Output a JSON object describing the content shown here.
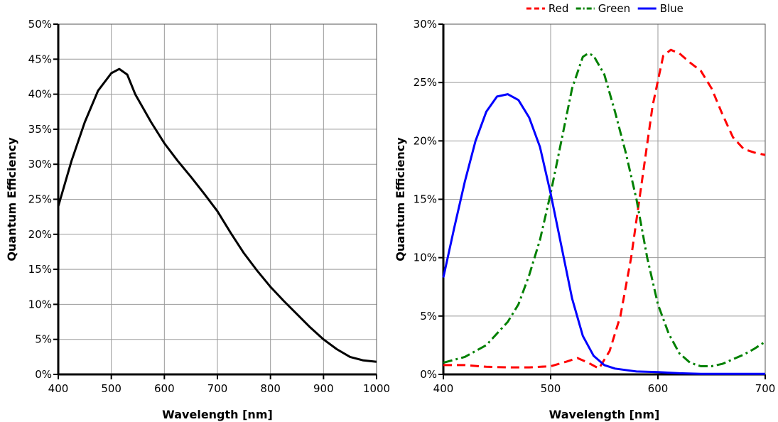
{
  "chart_data": [
    {
      "type": "line",
      "xlabel": "Wavelength [nm]",
      "ylabel": "Quantum Efficiency",
      "xlim": [
        400,
        1000
      ],
      "ylim": [
        0,
        50
      ],
      "x_ticks": [
        "400",
        "500",
        "600",
        "700",
        "800",
        "900",
        "1000"
      ],
      "y_ticks": [
        "0%",
        "5%",
        "10%",
        "15%",
        "20%",
        "25%",
        "30%",
        "35%",
        "40%",
        "45%",
        "50%"
      ],
      "grid": true,
      "legend": "none",
      "series": [
        {
          "color": "#000000",
          "style": "solid",
          "x": [
            400,
            425,
            450,
            475,
            500,
            515,
            530,
            545,
            575,
            600,
            625,
            650,
            675,
            700,
            725,
            750,
            775,
            800,
            825,
            850,
            875,
            900,
            925,
            950,
            975,
            1000
          ],
          "y": [
            24,
            30.5,
            36,
            40.5,
            43,
            43.6,
            42.8,
            40,
            36,
            33,
            30.5,
            28.2,
            25.8,
            23.3,
            20.2,
            17.3,
            14.8,
            12.5,
            10.5,
            8.6,
            6.7,
            5.0,
            3.6,
            2.5,
            2.0,
            1.8
          ]
        }
      ]
    },
    {
      "type": "line",
      "xlabel": "Wavelength [nm]",
      "ylabel": "Quantum Efficiency",
      "xlim": [
        400,
        700
      ],
      "ylim": [
        0,
        30
      ],
      "x_ticks": [
        "400",
        "500",
        "600",
        "700"
      ],
      "y_ticks": [
        "0%",
        "5%",
        "10%",
        "15%",
        "20%",
        "25%",
        "30%"
      ],
      "grid": true,
      "legend": "top",
      "series": [
        {
          "name": "Red",
          "color": "#ff0000",
          "style": "dashed",
          "x": [
            400,
            420,
            440,
            460,
            480,
            500,
            515,
            525,
            535,
            545,
            555,
            565,
            575,
            585,
            595,
            605,
            612,
            620,
            630,
            640,
            650,
            660,
            670,
            680,
            690,
            700
          ],
          "y": [
            0.8,
            0.8,
            0.65,
            0.6,
            0.6,
            0.7,
            1.1,
            1.4,
            1.0,
            0.5,
            2.0,
            5.0,
            10.0,
            16.5,
            23.0,
            27.3,
            27.8,
            27.5,
            26.7,
            26.0,
            24.5,
            22.3,
            20.3,
            19.3,
            19.0,
            18.8
          ]
        },
        {
          "name": "Green",
          "color": "#008000",
          "style": "dashdot",
          "x": [
            400,
            420,
            440,
            460,
            470,
            480,
            490,
            500,
            510,
            520,
            530,
            535,
            540,
            550,
            560,
            570,
            580,
            590,
            600,
            610,
            620,
            630,
            640,
            650,
            660,
            670,
            680,
            690,
            700
          ],
          "y": [
            1.0,
            1.5,
            2.5,
            4.5,
            6.0,
            8.5,
            11.5,
            15.5,
            20.0,
            24.5,
            27.2,
            27.5,
            27.3,
            25.7,
            22.5,
            19.0,
            15.0,
            10.0,
            6.0,
            3.5,
            1.8,
            1.0,
            0.7,
            0.7,
            0.9,
            1.3,
            1.7,
            2.2,
            2.8
          ]
        },
        {
          "name": "Blue",
          "color": "#0000ff",
          "style": "solid",
          "x": [
            400,
            410,
            420,
            430,
            440,
            450,
            460,
            470,
            480,
            490,
            500,
            510,
            520,
            530,
            540,
            550,
            560,
            580,
            600,
            620,
            640,
            660,
            680,
            700
          ],
          "y": [
            8.3,
            12.5,
            16.5,
            20.0,
            22.5,
            23.8,
            24.0,
            23.5,
            22.0,
            19.5,
            15.5,
            11.0,
            6.5,
            3.3,
            1.6,
            0.8,
            0.5,
            0.25,
            0.2,
            0.1,
            0.05,
            0.05,
            0.05,
            0.05
          ]
        }
      ]
    }
  ]
}
